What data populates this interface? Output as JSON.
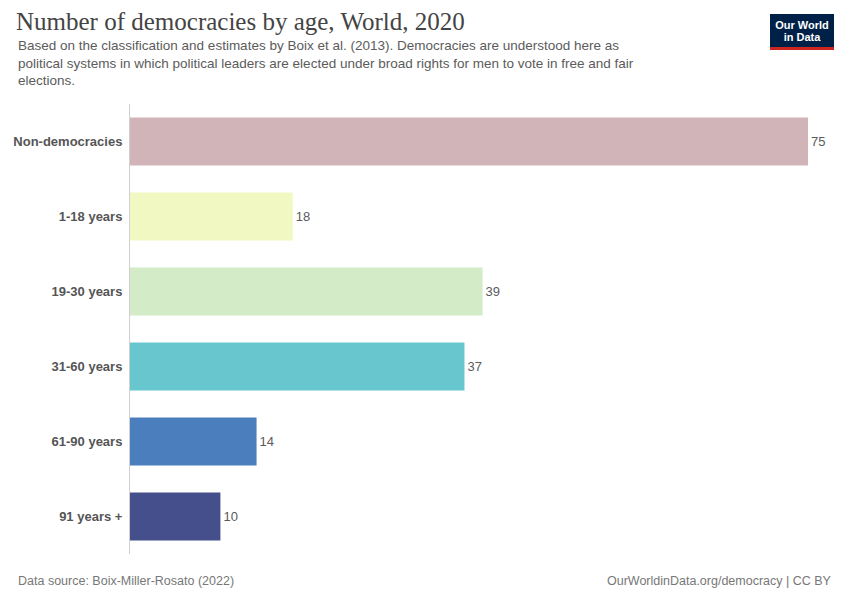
{
  "chart_data": {
    "type": "bar",
    "title": "Number of democracies by age, World, 2020",
    "subtitle": "Based on the classification and estimates by Boix et al. (2013). Democracies are understood here as political systems in which political leaders are elected under broad rights for men to vote in free and fair elections.",
    "categories": [
      "Non-democracies",
      "1-18 years",
      "19-30 years",
      "31-60 years",
      "61-90 years",
      "91 years +"
    ],
    "values": [
      75,
      18,
      39,
      37,
      14,
      10
    ],
    "colors": [
      "#d1b4b8",
      "#f1f8c1",
      "#d3ebc7",
      "#68c6cf",
      "#4b7ebd",
      "#454f8c"
    ],
    "orientation": "horizontal",
    "data_labels": true,
    "tick_labels": "y",
    "grid": false,
    "xlim": [
      0,
      75
    ],
    "source": "Data source: Boix-Miller-Rosato (2022)",
    "footer": "OurWorldinData.org/democracy | CC BY",
    "logo": [
      "Our World",
      "in Data"
    ]
  }
}
